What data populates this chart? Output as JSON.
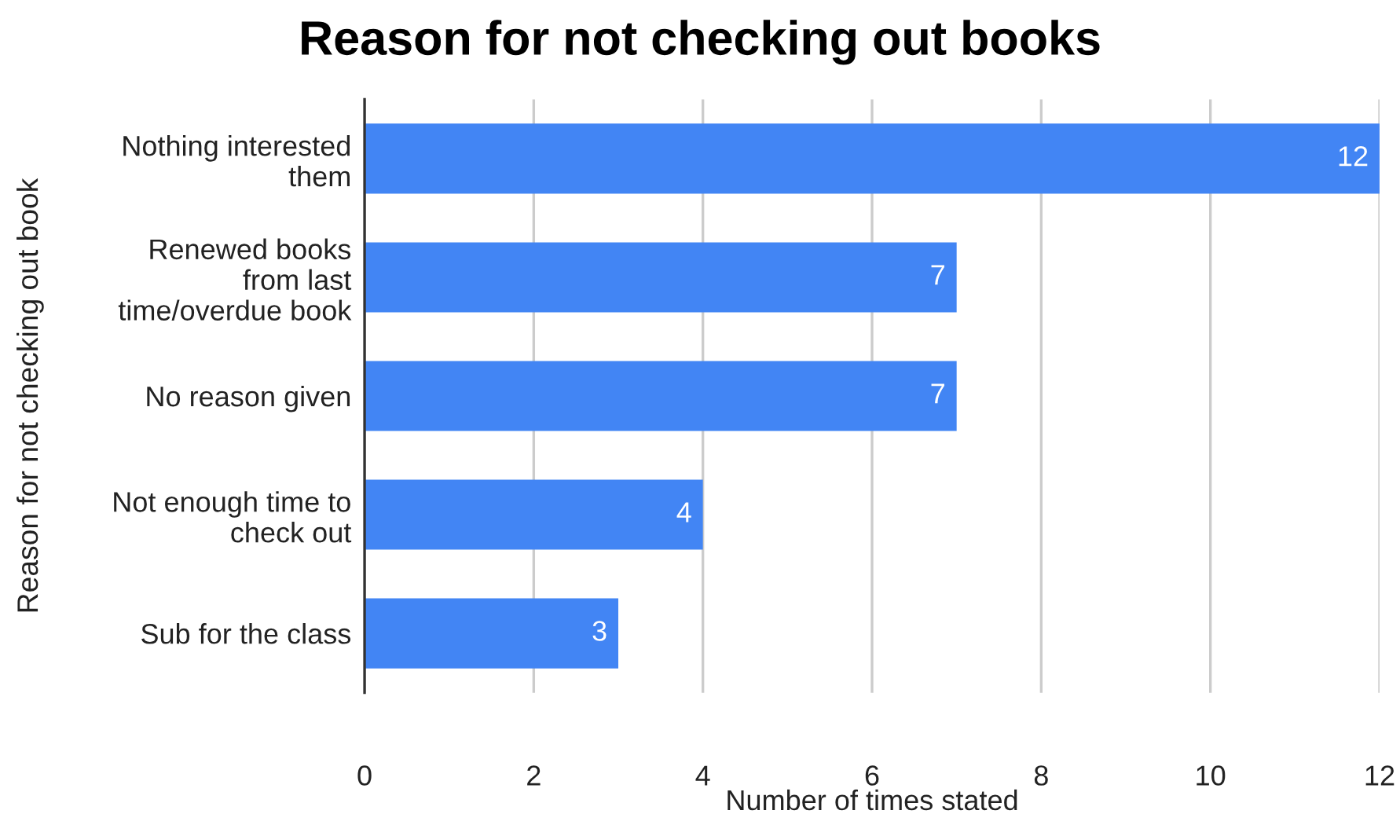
{
  "chart_data": {
    "type": "bar",
    "orientation": "horizontal",
    "title": "Reason for not checking out books",
    "xlabel": "Number of times stated",
    "ylabel": "Reason for not checking out book",
    "categories": [
      "Nothing interested\nthem",
      "Renewed books\nfrom last\ntime/overdue book",
      "No reason given",
      "Not enough time to\ncheck out",
      "Sub for the class"
    ],
    "values": [
      12,
      7,
      7,
      4,
      3
    ],
    "color": "#4285f4",
    "xlim": [
      0,
      12
    ],
    "xticks": [
      0,
      2,
      4,
      6,
      8,
      10,
      12
    ],
    "grid": "x",
    "data_labels": true
  }
}
